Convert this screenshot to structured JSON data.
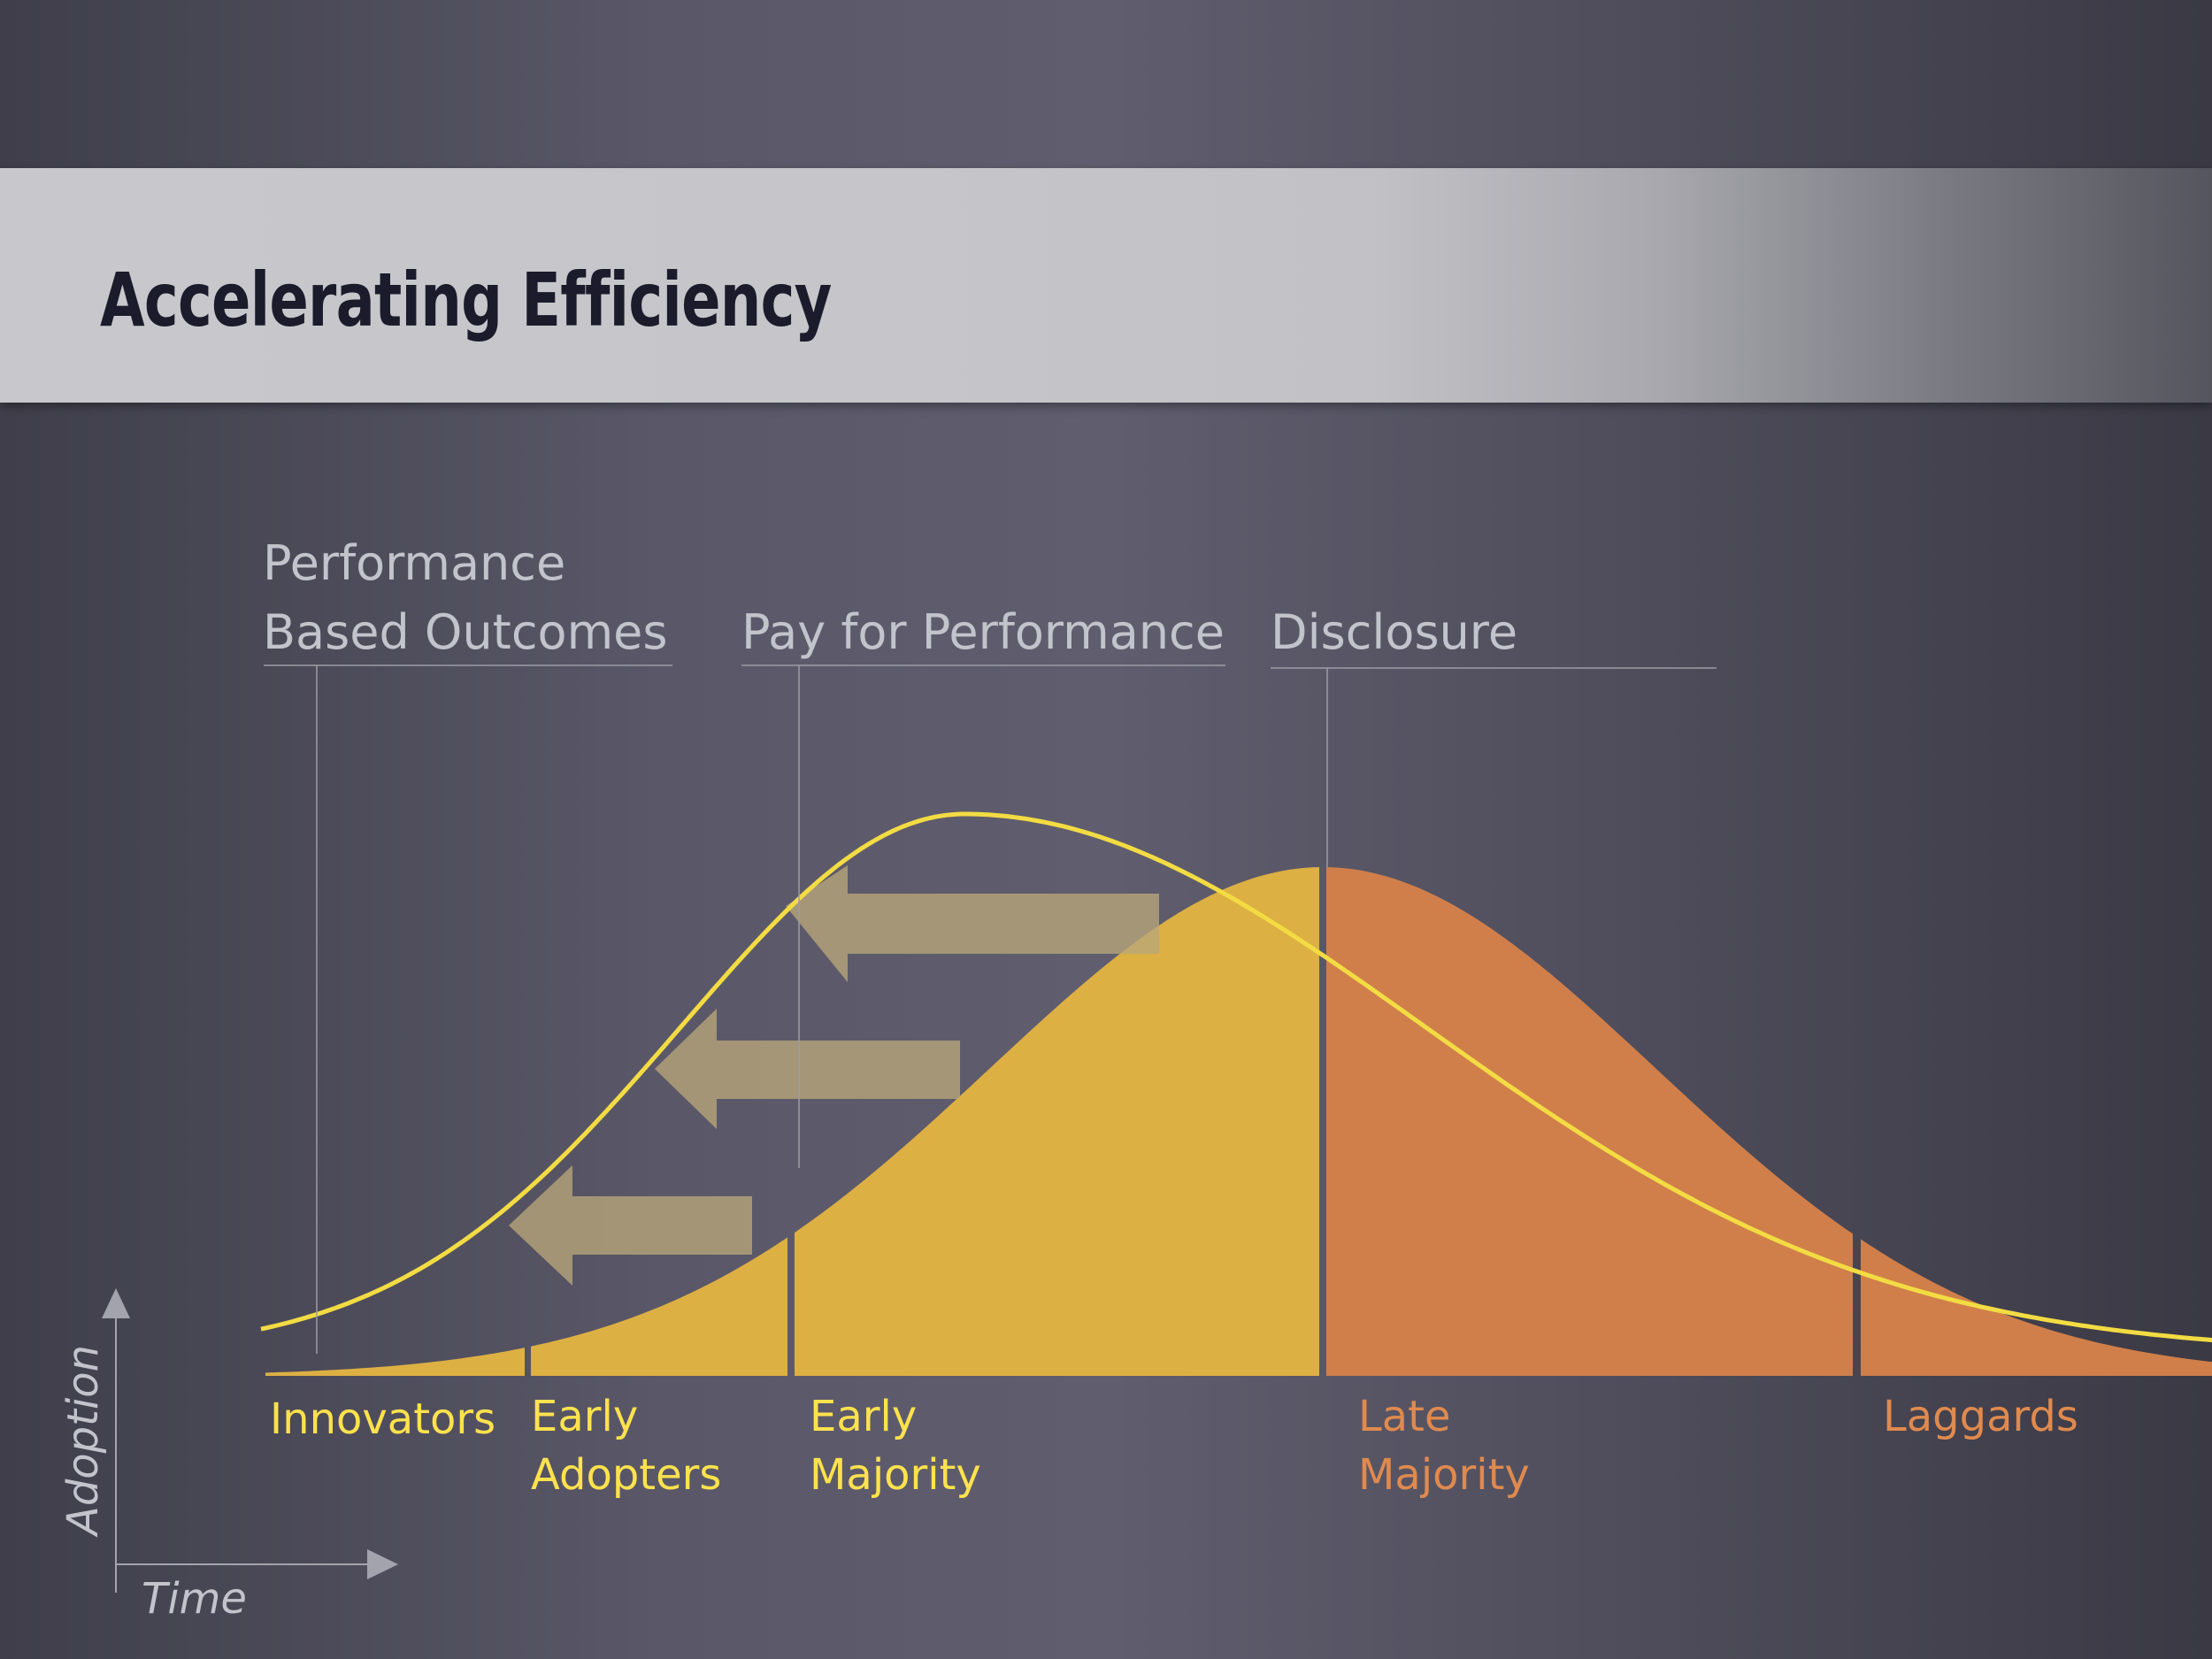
{
  "title": "Accelerating Efficiency",
  "policies": [
    {
      "line1": "Performance",
      "line2": "Based Outcomes"
    },
    {
      "line1": "",
      "line2": "Pay for Performance"
    },
    {
      "line1": "",
      "line2": "Disclosure"
    }
  ],
  "segments": [
    {
      "line1": "Innovators",
      "line2": "",
      "color": "#ffe24d"
    },
    {
      "line1": "Early",
      "line2": "Adopters",
      "color": "#ffe24d"
    },
    {
      "line1": "Early",
      "line2": "Majority",
      "color": "#ffe24d"
    },
    {
      "line1": "Late",
      "line2": "Majority",
      "color": "#e08a4e"
    },
    {
      "line1": "",
      "line2": "Laggards",
      "color": "#e08a4e"
    }
  ],
  "axes": {
    "y_label": "Adoption",
    "x_label": "Time"
  },
  "colors": {
    "early_fill": "#ddb043",
    "late_fill": "#d07f4a",
    "shifted_curve": "#f3dc43",
    "arrows": "#b8a67a",
    "policy_text": "#c3c3cc",
    "axis": "#a3a3ad"
  }
}
